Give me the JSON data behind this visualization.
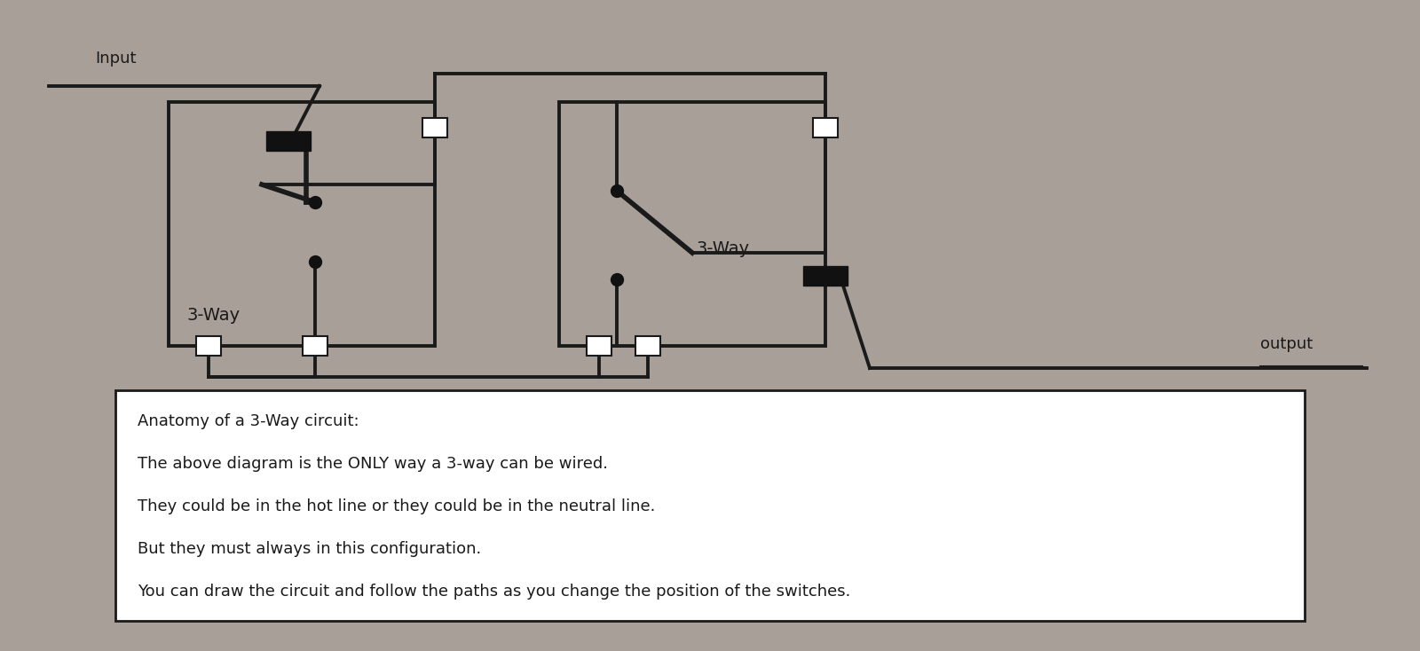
{
  "bg_color": "#a89f99",
  "line_color": "#1a1a1a",
  "black_fill": "#111111",
  "white_fill": "#ffffff",
  "switch1_label": "3-Way",
  "switch2_label": "3-Way",
  "input_label": "Input",
  "output_label": "output",
  "text_box_lines": [
    "Anatomy of a 3-Way circuit:",
    "The above diagram is the ONLY way a 3-way can be wired.",
    "They could be in the hot line or they could be in the neutral line.",
    "But they must always in this configuration.",
    "You can draw the circuit and follow the paths as you change the position of the switches."
  ],
  "lw": 2.8,
  "lw_thick": 4.0,
  "figw": 16.0,
  "figh": 7.34
}
